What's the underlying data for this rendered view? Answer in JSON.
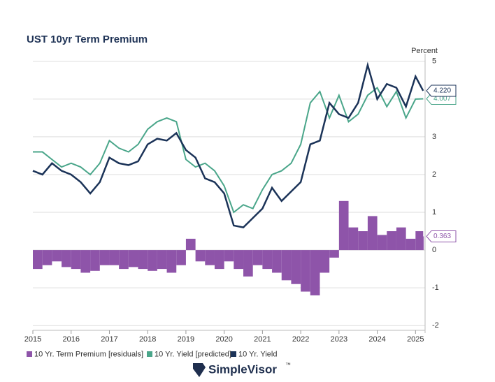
{
  "chart_data": {
    "type": "line",
    "title": "UST 10yr Term Premium",
    "y_label": "Percent",
    "brand": "SimpleVisor",
    "brand_mark": "™",
    "x": [
      2015.0,
      2015.25,
      2015.5,
      2015.75,
      2016.0,
      2016.25,
      2016.5,
      2016.75,
      2017.0,
      2017.25,
      2017.5,
      2017.75,
      2018.0,
      2018.25,
      2018.5,
      2018.75,
      2019.0,
      2019.25,
      2019.5,
      2019.75,
      2020.0,
      2020.25,
      2020.5,
      2020.75,
      2021.0,
      2021.25,
      2021.5,
      2021.75,
      2022.0,
      2022.25,
      2022.5,
      2022.75,
      2023.0,
      2023.25,
      2023.5,
      2023.75,
      2024.0,
      2024.25,
      2024.5,
      2024.75,
      2025.0,
      2025.2
    ],
    "series": [
      {
        "name": "10 Yr. Term Premium [residuals]",
        "color": "#8e54a9",
        "style": "bar",
        "values": [
          -0.5,
          -0.4,
          -0.3,
          -0.45,
          -0.5,
          -0.6,
          -0.55,
          -0.4,
          -0.4,
          -0.5,
          -0.45,
          -0.5,
          -0.55,
          -0.5,
          -0.6,
          -0.4,
          0.3,
          -0.3,
          -0.4,
          -0.5,
          -0.3,
          -0.5,
          -0.7,
          -0.4,
          -0.5,
          -0.6,
          -0.8,
          -0.9,
          -1.1,
          -1.2,
          -0.6,
          -0.2,
          1.3,
          0.6,
          0.5,
          0.9,
          0.4,
          0.5,
          0.6,
          0.3,
          0.5,
          0.363
        ],
        "value_labels": [
          null,
          null,
          null,
          null,
          null,
          null,
          null,
          null,
          null,
          null,
          null,
          null,
          null,
          null,
          null,
          null,
          null,
          null,
          null,
          null,
          null,
          null,
          null,
          null,
          null,
          null,
          null,
          null,
          null,
          null,
          null,
          null,
          null,
          null,
          null,
          null,
          null,
          null,
          null,
          null,
          null,
          "0.363"
        ]
      },
      {
        "name": "10 Yr. Yield [predicted]",
        "color": "#4aa68a",
        "style": "line",
        "values": [
          2.6,
          2.6,
          2.4,
          2.2,
          2.3,
          2.2,
          2.0,
          2.3,
          2.9,
          2.7,
          2.6,
          2.8,
          3.2,
          3.4,
          3.5,
          3.4,
          2.4,
          2.2,
          2.3,
          2.1,
          1.7,
          1.0,
          1.2,
          1.1,
          1.6,
          2.0,
          2.1,
          2.3,
          2.8,
          3.9,
          4.2,
          3.5,
          4.1,
          3.4,
          3.6,
          4.1,
          4.3,
          3.8,
          4.2,
          3.5,
          4.0,
          4.007
        ],
        "value_labels": [
          null,
          null,
          null,
          null,
          null,
          null,
          null,
          null,
          null,
          null,
          null,
          null,
          null,
          null,
          null,
          null,
          null,
          null,
          null,
          null,
          null,
          null,
          null,
          null,
          null,
          null,
          null,
          null,
          null,
          null,
          null,
          null,
          null,
          null,
          null,
          null,
          null,
          null,
          null,
          null,
          null,
          "4.007"
        ]
      },
      {
        "name": "10 Yr. Yield",
        "color": "#1b3358",
        "style": "line",
        "values": [
          2.1,
          2.0,
          2.3,
          2.1,
          2.0,
          1.8,
          1.5,
          1.8,
          2.45,
          2.3,
          2.25,
          2.35,
          2.8,
          2.95,
          2.9,
          3.1,
          2.65,
          2.45,
          1.9,
          1.8,
          1.5,
          0.65,
          0.6,
          0.85,
          1.1,
          1.65,
          1.3,
          1.55,
          1.8,
          2.8,
          2.9,
          3.9,
          3.6,
          3.5,
          3.9,
          4.9,
          4.0,
          4.4,
          4.3,
          3.8,
          4.6,
          4.22
        ],
        "value_labels": [
          null,
          null,
          null,
          null,
          null,
          null,
          null,
          null,
          null,
          null,
          null,
          null,
          null,
          null,
          null,
          null,
          null,
          null,
          null,
          null,
          null,
          null,
          null,
          null,
          null,
          null,
          null,
          null,
          null,
          null,
          null,
          null,
          null,
          null,
          null,
          null,
          null,
          null,
          null,
          null,
          null,
          "4.220"
        ]
      }
    ],
    "xlim": [
      2015,
      2025.25
    ],
    "xticks": [
      2015,
      2016,
      2017,
      2018,
      2019,
      2020,
      2021,
      2022,
      2023,
      2024,
      2025
    ],
    "ylim": [
      -2.2,
      5.2
    ],
    "yticks": [
      -2,
      -1,
      0,
      1,
      2,
      3,
      4,
      5
    ],
    "grid": true,
    "legend": "bottom"
  }
}
